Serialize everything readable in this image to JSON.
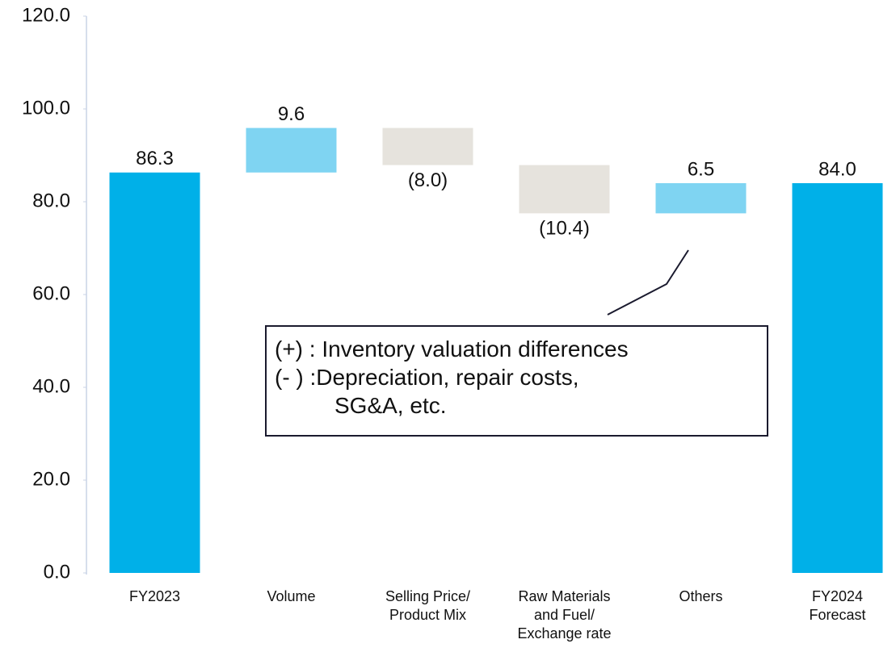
{
  "chart_data": {
    "type": "waterfall",
    "categories": [
      "FY2023",
      "Volume",
      "Selling Price/\nProduct Mix",
      "Raw Materials\nand Fuel/\nExchange rate",
      "Others",
      "FY2024\nForecast"
    ],
    "values": [
      86.3,
      9.6,
      -8.0,
      -10.4,
      6.5,
      84.0
    ],
    "value_labels": [
      "86.3",
      "9.6",
      "(8.0)",
      "(10.4)",
      "6.5",
      "84.0"
    ],
    "total_color": "#00b0e8",
    "increase_color": "#7fd4f2",
    "decrease_color": "#e6e3dd",
    "ylim": [
      0,
      120
    ],
    "yticks": [
      {
        "value": 0,
        "label": "0.0"
      },
      {
        "value": 20,
        "label": "20.0"
      },
      {
        "value": 40,
        "label": "40.0"
      },
      {
        "value": 60,
        "label": "60.0"
      },
      {
        "value": 80,
        "label": "80.0"
      },
      {
        "value": 100,
        "label": "100.0"
      },
      {
        "value": 120,
        "label": "120.0"
      }
    ],
    "annotation": [
      "(+) : Inventory valuation differences",
      "(- ) :Depreciation, repair costs,",
      "SG&A, etc."
    ]
  }
}
